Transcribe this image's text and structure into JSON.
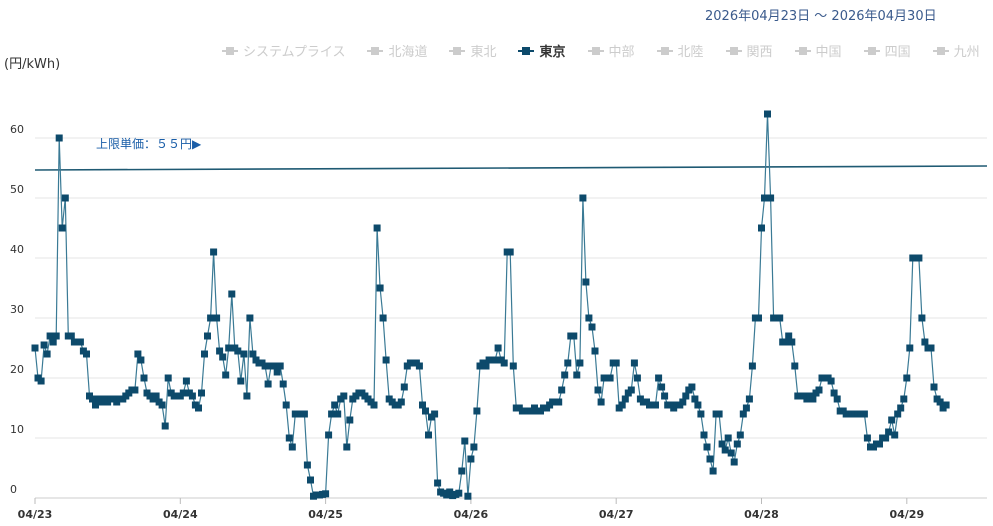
{
  "date_range": "2026年04月23日 〜 2026年04月30日",
  "legend": [
    {
      "label": "システムプライス",
      "active": false
    },
    {
      "label": "北海道",
      "active": false
    },
    {
      "label": "東北",
      "active": false
    },
    {
      "label": "東京",
      "active": true
    },
    {
      "label": "中部",
      "active": false
    },
    {
      "label": "北陸",
      "active": false
    },
    {
      "label": "関西",
      "active": false
    },
    {
      "label": "中国",
      "active": false
    },
    {
      "label": "四国",
      "active": false
    },
    {
      "label": "九州",
      "active": false
    }
  ],
  "colors": {
    "series": "#0d4a6b",
    "line": "#3a7a95",
    "limit": "#1f5a73",
    "grid": "#e6e6e6",
    "limit_label": "#1a5ea8"
  },
  "chart_data": {
    "type": "line",
    "ylabel": "(円/kWh)",
    "ylim": [
      0,
      70
    ],
    "yticks": [
      0,
      10,
      20,
      30,
      40,
      50,
      60
    ],
    "xlim": [
      0,
      6.58
    ],
    "xticks": [
      {
        "value": 0,
        "label": "04/23"
      },
      {
        "value": 1,
        "label": "04/24"
      },
      {
        "value": 2,
        "label": "04/25"
      },
      {
        "value": 3,
        "label": "04/26"
      },
      {
        "value": 4,
        "label": "04/27"
      },
      {
        "value": 5,
        "label": "04/28"
      },
      {
        "value": 6,
        "label": "04/29"
      }
    ],
    "grid": true,
    "limit_line": {
      "value": 55,
      "label": "上限単価：５５円▶"
    },
    "series": [
      {
        "name": "東京",
        "x_start": 0,
        "x_step": 0.020833,
        "values": [
          25,
          20,
          19.5,
          25.5,
          24,
          27,
          26,
          27,
          60,
          45,
          50,
          27,
          27,
          26,
          26,
          26,
          24.5,
          24,
          17,
          16.5,
          15.5,
          16.5,
          16,
          16.5,
          16,
          16.5,
          16.5,
          16,
          16.5,
          16.5,
          17,
          17.5,
          18,
          18,
          24,
          23,
          20,
          17.5,
          17,
          16.5,
          17,
          16,
          15.5,
          12,
          20,
          17.5,
          17,
          17,
          17,
          17.5,
          19.5,
          17.5,
          17,
          15.5,
          15,
          17.5,
          24,
          27,
          30,
          41,
          30,
          24.5,
          23.5,
          20.5,
          25,
          34,
          25,
          24.5,
          19.5,
          24,
          17,
          30,
          24,
          23,
          22.5,
          22.5,
          22,
          19,
          22,
          22,
          21,
          22,
          19,
          15.5,
          10,
          8.5,
          14,
          14,
          14,
          14,
          5.5,
          3,
          0.3,
          0.5,
          0.5,
          0.6,
          0.7,
          10.5,
          14,
          15.5,
          14,
          16.5,
          17,
          8.5,
          13,
          16.5,
          17,
          17.5,
          17.5,
          17,
          16.5,
          16,
          15.5,
          45,
          35,
          30,
          23,
          16.5,
          16,
          15.5,
          15.5,
          16,
          18.5,
          22,
          22.5,
          22.5,
          22.5,
          22,
          15.5,
          14.5,
          10.5,
          13.5,
          14,
          2.5,
          1,
          0.8,
          0.5,
          1,
          0.4,
          0.6,
          0.8,
          4.5,
          9.5,
          0.3,
          6.5,
          8.5,
          14.5,
          22,
          22.5,
          22,
          23,
          23,
          23,
          25,
          23,
          22.5,
          41,
          41,
          22,
          15,
          15,
          14.5,
          14.5,
          14.5,
          14.5,
          15,
          14.5,
          14.5,
          15,
          15,
          15.5,
          16,
          16,
          16,
          18,
          20.5,
          22.5,
          27,
          27,
          20.5,
          22.5,
          50,
          36,
          30,
          28.5,
          24.5,
          18,
          16,
          20,
          20,
          20,
          22.5,
          22.5,
          15,
          15.5,
          16.5,
          17.5,
          18,
          22.5,
          20,
          16.5,
          16,
          16,
          15.5,
          15.5,
          15.5,
          20,
          18.5,
          17,
          15.5,
          15.5,
          15,
          15.5,
          15.5,
          16,
          17,
          18,
          18.5,
          16.5,
          15.5,
          14,
          10.5,
          8.5,
          6.5,
          4.5,
          14,
          14,
          9,
          8,
          10,
          7.5,
          6,
          9,
          10.5,
          14,
          15,
          16.5,
          22,
          30,
          30,
          45,
          50,
          64,
          50,
          30,
          30,
          30,
          26,
          26,
          27,
          26,
          22,
          17,
          17,
          17,
          16.5,
          17,
          16.5,
          17.5,
          18,
          20,
          20,
          20,
          19.5,
          17.5,
          16.5,
          14.5,
          14.5,
          14,
          14,
          14,
          14,
          14,
          14,
          14,
          10,
          8.5,
          8.5,
          9,
          9,
          10,
          10,
          11,
          13,
          10.5,
          14,
          15,
          16.5,
          20,
          25,
          40,
          40,
          40,
          30,
          26,
          25,
          25,
          18.5,
          16.5,
          16,
          15,
          15.5
        ]
      }
    ]
  }
}
